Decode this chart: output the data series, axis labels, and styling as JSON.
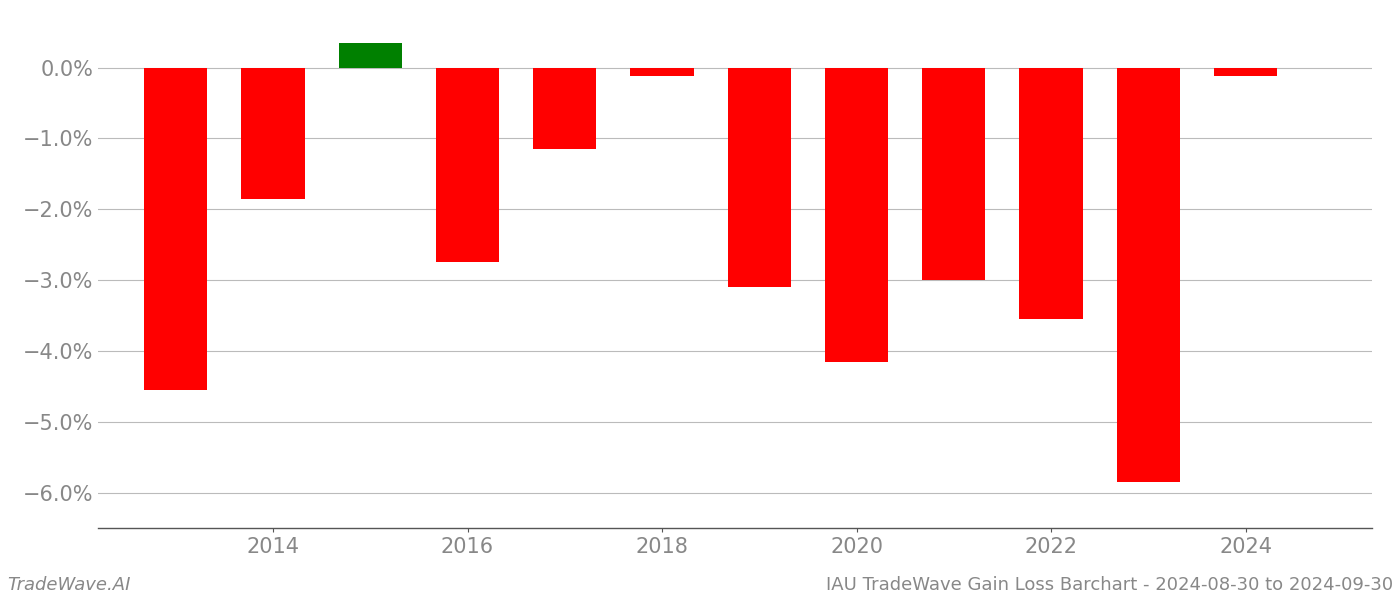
{
  "years": [
    2013,
    2014,
    2015,
    2016,
    2017,
    2018,
    2019,
    2020,
    2021,
    2022,
    2023,
    2024
  ],
  "values": [
    -4.55,
    -1.85,
    0.35,
    -2.75,
    -1.15,
    -0.12,
    -3.1,
    -4.15,
    -3.0,
    -3.55,
    -5.85,
    -0.12
  ],
  "bar_colors": [
    "#ff0000",
    "#ff0000",
    "#008000",
    "#ff0000",
    "#ff0000",
    "#ff0000",
    "#ff0000",
    "#ff0000",
    "#ff0000",
    "#ff0000",
    "#ff0000",
    "#ff0000"
  ],
  "ylim_min": -6.5,
  "ylim_max": 0.7,
  "yticks": [
    0.0,
    -1.0,
    -2.0,
    -3.0,
    -4.0,
    -5.0,
    -6.0
  ],
  "xtick_years": [
    2014,
    2016,
    2018,
    2020,
    2022,
    2024
  ],
  "footer_left": "TradeWave.AI",
  "footer_right": "IAU TradeWave Gain Loss Barchart - 2024-08-30 to 2024-09-30",
  "background_color": "#ffffff",
  "grid_color": "#bbbbbb",
  "bar_width": 0.65,
  "tick_color": "#888888",
  "tick_fontsize": 15,
  "footer_fontsize": 13,
  "xlim_min": 2012.2,
  "xlim_max": 2025.3
}
